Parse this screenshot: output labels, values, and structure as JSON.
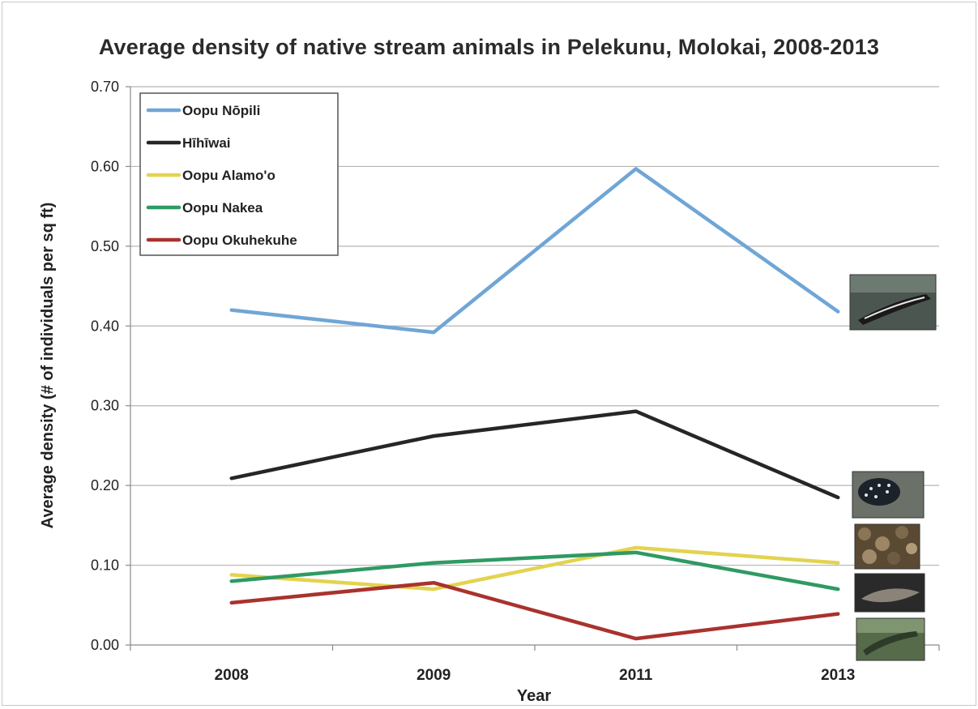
{
  "chart_data": {
    "type": "line",
    "title": "Average density of native stream animals in Pelekunu, Molokai, 2008-2013",
    "xlabel": "Year",
    "ylabel": "Average density  (# of individuals  per sq ft)",
    "categories": [
      "2008",
      "2009",
      "2011",
      "2013"
    ],
    "ylim": [
      0,
      0.7
    ],
    "yticks": [
      "0.00",
      "0.10",
      "0.20",
      "0.30",
      "0.40",
      "0.50",
      "0.60",
      "0.70"
    ],
    "grid": true,
    "legend_position": "top-left",
    "series": [
      {
        "name": "Oopu Nōpili",
        "color": "#6fa6d6",
        "values": [
          0.42,
          0.392,
          0.597,
          0.418
        ]
      },
      {
        "name": "Hīhīwai",
        "color": "#262626",
        "values": [
          0.209,
          0.262,
          0.293,
          0.185
        ]
      },
      {
        "name": "Oopu Alamo'o",
        "color": "#e3d34f",
        "values": [
          0.088,
          0.07,
          0.122,
          0.103
        ]
      },
      {
        "name": "Oopu Nakea",
        "color": "#2f9a62",
        "values": [
          0.08,
          0.103,
          0.116,
          0.07
        ]
      },
      {
        "name": "Oopu Okuhekuhe",
        "color": "#a9322d",
        "values": [
          0.053,
          0.078,
          0.008,
          0.039
        ]
      }
    ]
  },
  "photos": [
    {
      "subject": "oopu-nopili-photo"
    },
    {
      "subject": "hihiwai-photo"
    },
    {
      "subject": "oopu-alamoo-photo"
    },
    {
      "subject": "oopu-nakea-photo"
    },
    {
      "subject": "oopu-okuhekuhe-photo"
    }
  ]
}
